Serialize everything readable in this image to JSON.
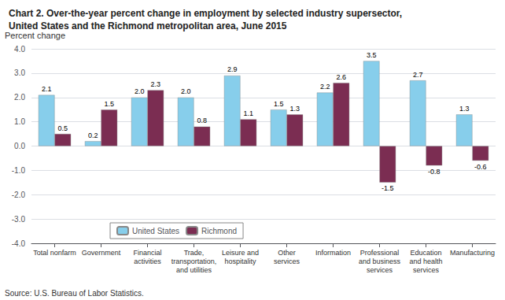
{
  "chart_data": {
    "type": "bar",
    "title": "Chart 2. Over-the-year percent change in employment by selected industry supersector,\nUnited States and the Richmond metropolitan area, June 2015",
    "ylabel": "Percent change",
    "source": "Source: U.S. Bureau of Labor Statistics.",
    "categories": [
      "Total nonfarm",
      "Government",
      "Financial\nactivities",
      "Trade,\ntransportation,\nand utilities",
      "Leisure and\nhospitality",
      "Other\nservices",
      "Information",
      "Professional\nand business\nservices",
      "Education\nand health\nservices",
      "Manufacturing"
    ],
    "series": [
      {
        "name": "United States",
        "color": "#87CEEB",
        "values": [
          2.1,
          0.2,
          2.0,
          2.0,
          2.9,
          1.5,
          2.2,
          3.5,
          2.7,
          1.3
        ],
        "value_labels": [
          "2.1",
          "0.2",
          "2.0",
          "2.0",
          "2.9",
          "1.5",
          "2.2",
          "3.5",
          "2.7",
          "1.3"
        ]
      },
      {
        "name": "Richmond",
        "color": "#7B2D52",
        "values": [
          0.5,
          1.5,
          2.3,
          0.8,
          1.1,
          1.3,
          2.6,
          -1.5,
          -0.8,
          -0.6
        ],
        "value_labels": [
          "0.5",
          "1.5",
          "2.3",
          "0.8",
          "1.1",
          "1.3",
          "2.6",
          "-1.5",
          "-0.8",
          "-0.6"
        ]
      }
    ],
    "ylim": [
      -4.0,
      4.0
    ],
    "yticks": [
      {
        "value": -4.0,
        "label": "-4.0"
      },
      {
        "value": -3.0,
        "label": "-3.0"
      },
      {
        "value": -2.0,
        "label": "-2.0"
      },
      {
        "value": -1.0,
        "label": "-1.0"
      },
      {
        "value": 0.0,
        "label": "0.0"
      },
      {
        "value": 1.0,
        "label": "1.0"
      },
      {
        "value": 2.0,
        "label": "2.0"
      },
      {
        "value": 3.0,
        "label": "3.0"
      },
      {
        "value": 4.0,
        "label": "4.0"
      }
    ],
    "grid": true,
    "legend": "lower left",
    "data_labels": true
  }
}
